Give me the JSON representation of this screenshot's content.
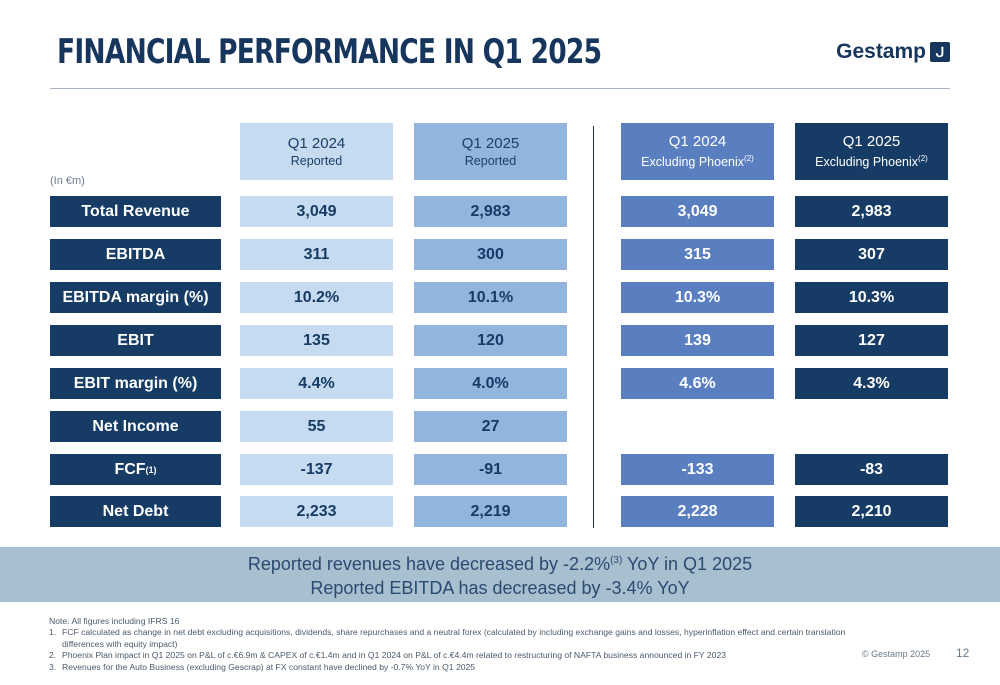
{
  "header": {
    "title": "FINANCIAL PERFORMANCE IN Q1 2025",
    "logo_text": "Gestamp",
    "logo_icon": "gestamp-hook-icon"
  },
  "table": {
    "unit_label": "(In €m)",
    "columns": [
      {
        "line1": "Q1 2024",
        "line2": "Reported",
        "sup": ""
      },
      {
        "line1": "Q1 2025",
        "line2": "Reported",
        "sup": ""
      },
      {
        "line1": "Q1 2024",
        "line2": "Excluding Phoenix",
        "sup": "(2)"
      },
      {
        "line1": "Q1 2025",
        "line2": "Excluding Phoenix",
        "sup": "(2)"
      }
    ],
    "rows": [
      {
        "label": "Total Revenue",
        "sup": "",
        "values": [
          "3,049",
          "2,983",
          "3,049",
          "2,983"
        ]
      },
      {
        "label": "EBITDA",
        "sup": "",
        "values": [
          "311",
          "300",
          "315",
          "307"
        ]
      },
      {
        "label": "EBITDA margin (%)",
        "sup": "",
        "values": [
          "10.2%",
          "10.1%",
          "10.3%",
          "10.3%"
        ]
      },
      {
        "label": "EBIT",
        "sup": "",
        "values": [
          "135",
          "120",
          "139",
          "127"
        ]
      },
      {
        "label": "EBIT margin (%)",
        "sup": "",
        "values": [
          "4.4%",
          "4.0%",
          "4.6%",
          "4.3%"
        ]
      },
      {
        "label": "Net Income",
        "sup": "",
        "values": [
          "55",
          "27",
          "",
          ""
        ]
      },
      {
        "label": "FCF",
        "sup": "(1)",
        "values": [
          "-137",
          "-91",
          "-133",
          "-83"
        ]
      },
      {
        "label": "Net Debt",
        "sup": "",
        "values": [
          "2,233",
          "2,219",
          "2,228",
          "2,210"
        ]
      }
    ],
    "colors": {
      "col1": "#c6daf0",
      "col2": "#92b5de",
      "col3": "#5a7fc1",
      "col4": "#163b64",
      "label_bg": "#163b64"
    }
  },
  "banner": {
    "line1_pre": "Reported revenues have decreased by -2.2%",
    "line1_sup": "(3)",
    "line1_post": " YoY in Q1 2025",
    "line2": "Reported EBITDA has decreased by -3.4% YoY"
  },
  "notes": {
    "intro": "Note: All figures including IFRS 16",
    "items": [
      {
        "k": "1.",
        "text": "FCF calculated as change in net debt excluding acquisitions, dividends, share repurchases and a neutral forex (calculated by including exchange gains and losses, hyperinflation effect and certain translation differences with equity impact)"
      },
      {
        "k": "2.",
        "text": "Phoenix Plan impact in Q1 2025 on P&L of c.€6.9m & CAPEX of c.€1.4m and in Q1 2024 on P&L of c.€4.4m related to restructuring of NAFTA business announced in FY 2023"
      },
      {
        "k": "3.",
        "text": "Revenues for the Auto Business (excluding Gescrap) at FX constant have declined by -0.7% YoY in Q1 2025"
      }
    ]
  },
  "footer": {
    "copyright": "© Gestamp 2025",
    "page_number": "12"
  }
}
